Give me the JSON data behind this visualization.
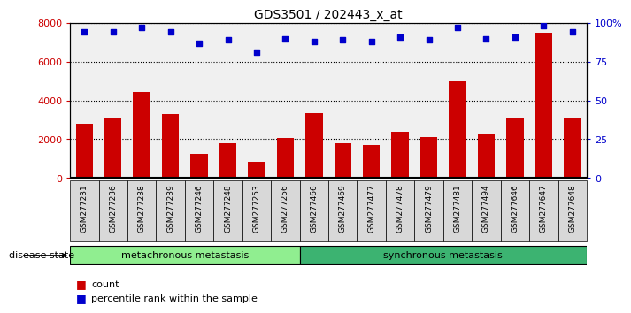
{
  "title": "GDS3501 / 202443_x_at",
  "categories": [
    "GSM277231",
    "GSM277236",
    "GSM277238",
    "GSM277239",
    "GSM277246",
    "GSM277248",
    "GSM277253",
    "GSM277256",
    "GSM277466",
    "GSM277469",
    "GSM277477",
    "GSM277478",
    "GSM277479",
    "GSM277481",
    "GSM277494",
    "GSM277646",
    "GSM277647",
    "GSM277648"
  ],
  "counts": [
    2800,
    3100,
    4450,
    3300,
    1250,
    1800,
    850,
    2050,
    3350,
    1800,
    1700,
    2400,
    2100,
    5000,
    2300,
    3100,
    7500,
    3100
  ],
  "percentiles": [
    94,
    94,
    97,
    94,
    87,
    89,
    81,
    90,
    88,
    89,
    88,
    91,
    89,
    97,
    90,
    91,
    98,
    94
  ],
  "bar_color": "#cc0000",
  "dot_color": "#0000cc",
  "group1_label": "metachronous metastasis",
  "group2_label": "synchronous metastasis",
  "group1_count": 8,
  "group2_count": 10,
  "group1_color": "#90ee90",
  "group2_color": "#3cb371",
  "ylim_left": [
    0,
    8000
  ],
  "ylim_right": [
    0,
    100
  ],
  "yticks_left": [
    0,
    2000,
    4000,
    6000,
    8000
  ],
  "ytick_labels_right": [
    "0",
    "25",
    "50",
    "75",
    "100%"
  ],
  "yticks_right": [
    0,
    25,
    50,
    75,
    100
  ],
  "disease_state_label": "disease state",
  "legend_count_label": "count",
  "legend_pct_label": "percentile rank within the sample",
  "background_color": "#ffffff",
  "plot_bg_color": "#f0f0f0",
  "xtick_bg_color": "#d8d8d8"
}
